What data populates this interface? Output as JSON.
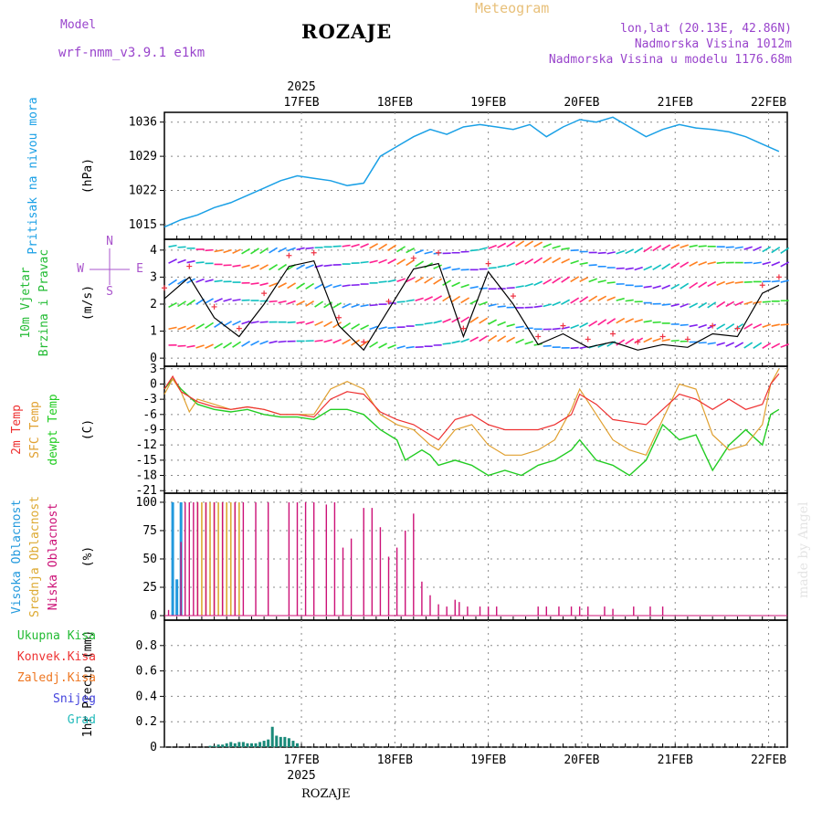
{
  "header": {
    "model_label": "Model",
    "model_name": "wrf-nmm_v3.9.1 e1km",
    "title": "ROZAJE",
    "meteogram": "Meteogram",
    "coords": "lon,lat (20.13E, 42.86N)",
    "elevation": "Nadmorska Visina 1012m",
    "model_elevation": "Nadmorska Visina u modelu 1176.68m",
    "footer": "ROZAJE",
    "watermark": "made by Angel"
  },
  "colors": {
    "pressure": "#1aa0e6",
    "temp2m": "#ee3030",
    "sfc": "#e0a030",
    "dewpt": "#22cc22",
    "high_cloud": "#2299dd",
    "mid_cloud": "#ddaa33",
    "low_cloud": "#cc1177",
    "total_precip": "#22bb33",
    "conv_precip": "#ee3333",
    "frz_precip": "#ee7722",
    "snow": "#4444dd",
    "hail": "#22bbbb",
    "header_purple": "#9944cc",
    "header_gold": "#e8c07a"
  },
  "chart_data": [
    {
      "type": "line",
      "id": "pressure",
      "ylabel": "(hPa)",
      "side_labels": [
        "Pritisak na nivou mora"
      ],
      "ylim": [
        1012,
        1038
      ],
      "yticks": [
        1015,
        1022,
        1029,
        1036
      ],
      "x_top_labels": [
        "17FEB",
        "18FEB",
        "19FEB",
        "20FEB",
        "21FEB",
        "22FEB"
      ],
      "x_top_year": "2025",
      "grid": true,
      "series": [
        {
          "x": [
            0,
            4,
            8,
            12,
            16,
            20,
            24,
            28,
            32,
            36,
            40,
            44,
            48,
            52,
            56,
            60,
            64,
            68,
            72,
            76,
            80,
            84,
            88,
            92,
            96,
            100,
            104,
            108,
            112,
            116,
            120,
            124,
            128,
            132,
            136,
            140,
            144,
            148
          ],
          "values": [
            1014.5,
            1016,
            1017,
            1018.5,
            1019.5,
            1021,
            1022.5,
            1024,
            1025,
            1024.5,
            1024,
            1023,
            1023.5,
            1029,
            1031,
            1033,
            1034.5,
            1033.5,
            1035,
            1035.5,
            1035,
            1034.5,
            1035.5,
            1033,
            1035,
            1036.5,
            1036,
            1037,
            1035,
            1033,
            1034.5,
            1035.5,
            1034.8,
            1034.5,
            1034,
            1033,
            1031.5,
            1030
          ]
        }
      ]
    },
    {
      "type": "line",
      "id": "wind",
      "ylabel": "(m/s)",
      "side_labels": [
        "10m Vjetar",
        "Brzina i Pravac"
      ],
      "compass": [
        "N",
        "S",
        "W",
        "E"
      ],
      "ylim": [
        -0.3,
        4.4
      ],
      "yticks": [
        0,
        1,
        2,
        3,
        4
      ],
      "grid": true,
      "series": [
        {
          "name": "speed",
          "x": [
            0,
            6,
            12,
            18,
            24,
            30,
            36,
            42,
            48,
            54,
            60,
            66,
            72,
            78,
            84,
            90,
            96,
            102,
            108,
            114,
            120,
            126,
            132,
            138,
            144,
            148
          ],
          "values": [
            2.2,
            3.0,
            1.5,
            0.8,
            2.0,
            3.4,
            3.6,
            1.2,
            0.3,
            1.8,
            3.3,
            3.5,
            0.8,
            3.2,
            2.0,
            0.5,
            0.9,
            0.4,
            0.6,
            0.3,
            0.5,
            0.4,
            0.9,
            0.8,
            2.4,
            2.7
          ]
        },
        {
          "name": "gust",
          "x": [
            0,
            6,
            12,
            18,
            24,
            30,
            36,
            42,
            48,
            54,
            60,
            66,
            72,
            78,
            84,
            90,
            96,
            102,
            108,
            114,
            120,
            126,
            132,
            138,
            144,
            148
          ],
          "values": [
            2.6,
            3.4,
            1.9,
            1.1,
            2.4,
            3.8,
            3.9,
            1.5,
            0.6,
            2.1,
            3.7,
            3.9,
            1.1,
            3.5,
            2.3,
            0.8,
            1.2,
            0.7,
            0.9,
            0.6,
            0.8,
            0.7,
            1.2,
            1.1,
            2.7,
            3.0
          ]
        }
      ]
    },
    {
      "type": "line",
      "id": "temperature",
      "ylabel": "(C)",
      "side_labels": [
        "2m Temp",
        "SFC Temp",
        "dewpt Temp"
      ],
      "ylim": [
        -21.5,
        3.5
      ],
      "yticks": [
        3,
        0,
        -3,
        -6,
        -9,
        -12,
        -15,
        -18,
        -21
      ],
      "grid": true,
      "series": [
        {
          "name": "2m Temp",
          "x": [
            0,
            2,
            4,
            8,
            12,
            16,
            20,
            24,
            28,
            32,
            36,
            40,
            44,
            48,
            52,
            56,
            60,
            64,
            66,
            70,
            74,
            78,
            82,
            86,
            90,
            94,
            98,
            100,
            104,
            108,
            112,
            116,
            120,
            124,
            128,
            132,
            136,
            140,
            144,
            146,
            148
          ],
          "values": [
            -1,
            1.5,
            -1.5,
            -3.5,
            -4.5,
            -5,
            -4.5,
            -5,
            -6,
            -6,
            -6.5,
            -3,
            -1.5,
            -2,
            -5.5,
            -7,
            -8,
            -10,
            -11,
            -7,
            -6,
            -8,
            -9,
            -9,
            -9,
            -8,
            -6,
            -2,
            -4,
            -7,
            -7.5,
            -8,
            -5,
            -2,
            -3,
            -5,
            -3,
            -5,
            -4,
            0,
            2
          ]
        },
        {
          "name": "SFC Temp",
          "x": [
            0,
            2,
            4,
            6,
            8,
            12,
            16,
            20,
            24,
            28,
            32,
            36,
            40,
            44,
            48,
            52,
            56,
            60,
            64,
            66,
            70,
            74,
            78,
            82,
            86,
            90,
            94,
            98,
            100,
            104,
            108,
            112,
            116,
            120,
            124,
            128,
            132,
            136,
            140,
            144,
            146,
            148
          ],
          "values": [
            -2,
            1,
            -1.5,
            -5.5,
            -3,
            -4,
            -5,
            -4.5,
            -5,
            -6,
            -6,
            -6,
            -1,
            0.5,
            -1,
            -6,
            -8,
            -9,
            -12,
            -13,
            -9,
            -8,
            -12,
            -14,
            -14,
            -13,
            -11,
            -5,
            -1,
            -6,
            -11,
            -13,
            -14,
            -7,
            0,
            -1,
            -10,
            -13,
            -12,
            -8,
            0,
            3
          ]
        },
        {
          "name": "dewpt Temp",
          "x": [
            0,
            2,
            4,
            8,
            12,
            16,
            20,
            24,
            28,
            32,
            36,
            40,
            44,
            48,
            52,
            56,
            58,
            62,
            64,
            66,
            70,
            74,
            78,
            82,
            86,
            90,
            94,
            98,
            100,
            104,
            108,
            112,
            116,
            120,
            124,
            128,
            132,
            136,
            140,
            144,
            146,
            148
          ],
          "values": [
            -1,
            1,
            -1,
            -4,
            -5,
            -5.5,
            -5,
            -6,
            -6.5,
            -6.5,
            -7,
            -5,
            -5,
            -6,
            -9,
            -11,
            -15,
            -13,
            -14,
            -16,
            -15,
            -16,
            -18,
            -17,
            -18,
            -16,
            -15,
            -13,
            -11,
            -15,
            -16,
            -18,
            -15,
            -8,
            -11,
            -10,
            -17,
            -12,
            -9,
            -12,
            -6,
            -5
          ]
        }
      ]
    },
    {
      "type": "bar",
      "id": "cloud",
      "ylabel": "(%)",
      "side_labels": [
        "Visoka Oblacnost",
        "Srednja Oblacnost",
        "Niska Oblacnost"
      ],
      "ylim": [
        -4,
        108
      ],
      "yticks": [
        0,
        25,
        50,
        75,
        100
      ],
      "grid": true,
      "series": [
        {
          "name": "Visoka Oblacnost",
          "x": [
            2,
            3,
            4
          ],
          "values": [
            100,
            32,
            100
          ]
        },
        {
          "name": "Srednja Oblacnost",
          "x": [
            8,
            9,
            10,
            11,
            12,
            13,
            14,
            15,
            16,
            17,
            18
          ],
          "values": [
            100,
            100,
            100,
            100,
            100,
            100,
            100,
            100,
            100,
            100,
            100
          ]
        },
        {
          "name": "Niska Oblacnost",
          "x": [
            1,
            4,
            5,
            6,
            7,
            8,
            10,
            12,
            14,
            17,
            19,
            22,
            25,
            30,
            32,
            34,
            36,
            39,
            41,
            43,
            45,
            48,
            50,
            52,
            54,
            56,
            58,
            60,
            62,
            64,
            66,
            68,
            70,
            71,
            73,
            76,
            78,
            80,
            90,
            92,
            95,
            98,
            100,
            102,
            106,
            108,
            113,
            117,
            120
          ],
          "values": [
            5,
            65,
            100,
            100,
            100,
            100,
            100,
            100,
            100,
            100,
            100,
            100,
            100,
            100,
            100,
            100,
            100,
            98,
            100,
            60,
            68,
            95,
            95,
            78,
            52,
            60,
            75,
            90,
            30,
            18,
            10,
            8,
            14,
            12,
            8,
            8,
            8,
            8,
            8,
            8,
            8,
            8,
            8,
            8,
            8,
            6,
            8,
            8,
            8
          ]
        }
      ]
    },
    {
      "type": "bar",
      "id": "precip",
      "ylabel": "1hr Precip (mm)",
      "side_labels": [
        "Ukupna Kisa",
        "Konvek.Kisa",
        "Zaledj.Kisa",
        "Snijeg",
        "Grad"
      ],
      "ylim": [
        0,
        1.0
      ],
      "yticks": [
        0,
        0.2,
        0.4,
        0.6,
        0.8
      ],
      "x_bottom_labels": [
        "17FEB",
        "18FEB",
        "19FEB",
        "20FEB",
        "21FEB",
        "22FEB"
      ],
      "x_bottom_year": "2025",
      "grid": true,
      "series": [
        {
          "name": "Snijeg",
          "x": [
            11,
            12,
            13,
            14,
            15,
            16,
            17,
            18,
            19,
            20,
            21,
            22,
            23,
            24,
            25,
            26,
            27,
            28,
            29,
            30,
            31,
            32
          ],
          "values": [
            0.01,
            0.01,
            0.02,
            0.02,
            0.03,
            0.04,
            0.03,
            0.04,
            0.04,
            0.03,
            0.03,
            0.03,
            0.04,
            0.05,
            0.06,
            0.16,
            0.09,
            0.08,
            0.08,
            0.07,
            0.05,
            0.03
          ]
        }
      ]
    }
  ]
}
